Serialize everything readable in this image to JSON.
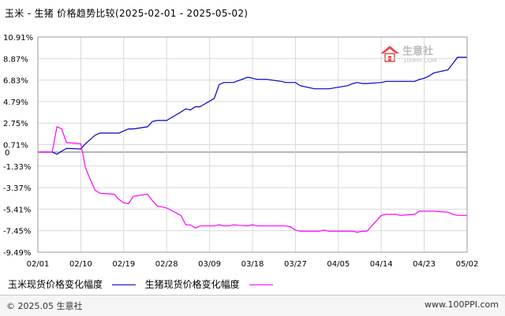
{
  "title": "玉米 - 生猪  价格趋势比较(2025-02-01 - 2025-05-02)",
  "watermark": {
    "text": "生意社",
    "sub": "100PPI.COM"
  },
  "legend": [
    {
      "label": "玉米现货价格变化幅度",
      "color": "#0000cc"
    },
    {
      "label": "生猪现货价格变化幅度",
      "color": "#ff00ff"
    }
  ],
  "footer": {
    "left": "© 2025.05 生意社",
    "right": "www.100PPI.com"
  },
  "chart_data": {
    "type": "line",
    "ylim": [
      -9.49,
      10.91
    ],
    "yticks": [
      "10.91%",
      "8.87%",
      "6.83%",
      "4.79%",
      "2.75%",
      "0.71%",
      "0",
      "-1.33%",
      "-3.37%",
      "-5.41%",
      "-7.45%",
      "-9.49%"
    ],
    "ytick_values": [
      10.91,
      8.87,
      6.83,
      4.79,
      2.75,
      0.71,
      0,
      -1.33,
      -3.37,
      -5.41,
      -7.45,
      -9.49
    ],
    "xlim": [
      "02/01",
      "05/02"
    ],
    "xticks": [
      "02/01",
      "02/10",
      "02/19",
      "02/28",
      "03/09",
      "03/18",
      "03/27",
      "04/05",
      "04/14",
      "04/23",
      "05/02"
    ],
    "grid": true,
    "series": [
      {
        "name": "玉米现货价格变化幅度",
        "color": "#0000cc",
        "x": [
          "02/01",
          "02/04",
          "02/05",
          "02/06",
          "02/07",
          "02/10",
          "02/11",
          "02/12",
          "02/13",
          "02/14",
          "02/17",
          "02/18",
          "02/19",
          "02/20",
          "02/21",
          "02/24",
          "02/25",
          "02/26",
          "02/27",
          "02/28",
          "03/03",
          "03/04",
          "03/05",
          "03/06",
          "03/07",
          "03/10",
          "03/11",
          "03/12",
          "03/13",
          "03/14",
          "03/17",
          "03/18",
          "03/19",
          "03/20",
          "03/21",
          "03/24",
          "03/25",
          "03/26",
          "03/27",
          "03/28",
          "03/31",
          "04/01",
          "04/02",
          "04/03",
          "04/07",
          "04/08",
          "04/09",
          "04/10",
          "04/11",
          "04/14",
          "04/15",
          "04/16",
          "04/17",
          "04/18",
          "04/21",
          "04/22",
          "04/23",
          "04/24",
          "04/25",
          "04/28",
          "04/29",
          "04/30",
          "05/02"
        ],
        "values": [
          0,
          0,
          -0.2,
          0.1,
          0.35,
          0.3,
          0.8,
          1.2,
          1.6,
          1.8,
          1.8,
          1.8,
          2.0,
          2.2,
          2.2,
          2.4,
          2.9,
          3.0,
          3.0,
          3.0,
          3.8,
          4.1,
          4.0,
          4.3,
          4.3,
          5.1,
          6.4,
          6.6,
          6.6,
          6.6,
          7.1,
          7.0,
          6.9,
          6.9,
          6.9,
          6.7,
          6.6,
          6.6,
          6.6,
          6.3,
          6.0,
          6.0,
          6.0,
          6.0,
          6.3,
          6.5,
          6.6,
          6.5,
          6.5,
          6.6,
          6.7,
          6.7,
          6.7,
          6.7,
          6.7,
          6.9,
          7.0,
          7.2,
          7.5,
          7.8,
          8.4,
          9.0,
          9.0
        ]
      },
      {
        "name": "生猪现货价格变化幅度",
        "color": "#ff00ff",
        "x": [
          "02/01",
          "02/04",
          "02/05",
          "02/06",
          "02/07",
          "02/10",
          "02/11",
          "02/12",
          "02/13",
          "02/14",
          "02/17",
          "02/18",
          "02/19",
          "02/20",
          "02/21",
          "02/24",
          "02/25",
          "02/26",
          "02/27",
          "02/28",
          "03/03",
          "03/04",
          "03/05",
          "03/06",
          "03/07",
          "03/10",
          "03/11",
          "03/12",
          "03/13",
          "03/14",
          "03/17",
          "03/18",
          "03/19",
          "03/20",
          "03/21",
          "03/24",
          "03/25",
          "03/26",
          "03/27",
          "03/28",
          "03/31",
          "04/01",
          "04/02",
          "04/03",
          "04/07",
          "04/08",
          "04/09",
          "04/10",
          "04/11",
          "04/14",
          "04/15",
          "04/16",
          "04/17",
          "04/18",
          "04/21",
          "04/22",
          "04/23",
          "04/24",
          "04/25",
          "04/28",
          "04/29",
          "04/30",
          "05/02"
        ],
        "values": [
          0,
          0,
          2.4,
          2.2,
          0.9,
          0.8,
          -1.5,
          -2.6,
          -3.6,
          -3.9,
          -4.0,
          -4.5,
          -4.8,
          -4.9,
          -4.2,
          -4.0,
          -4.6,
          -5.1,
          -5.2,
          -5.3,
          -6.0,
          -6.9,
          -6.9,
          -7.2,
          -7.0,
          -7.0,
          -6.9,
          -7.0,
          -7.0,
          -6.9,
          -7.0,
          -6.9,
          -7.0,
          -7.0,
          -7.0,
          -7.0,
          -7.0,
          -7.1,
          -7.4,
          -7.5,
          -7.5,
          -7.5,
          -7.4,
          -7.5,
          -7.5,
          -7.5,
          -7.6,
          -7.5,
          -7.5,
          -6.0,
          -5.9,
          -5.9,
          -5.9,
          -6.0,
          -5.9,
          -5.6,
          -5.6,
          -5.6,
          -5.6,
          -5.7,
          -5.9,
          -6.0,
          -6.0
        ]
      }
    ]
  }
}
